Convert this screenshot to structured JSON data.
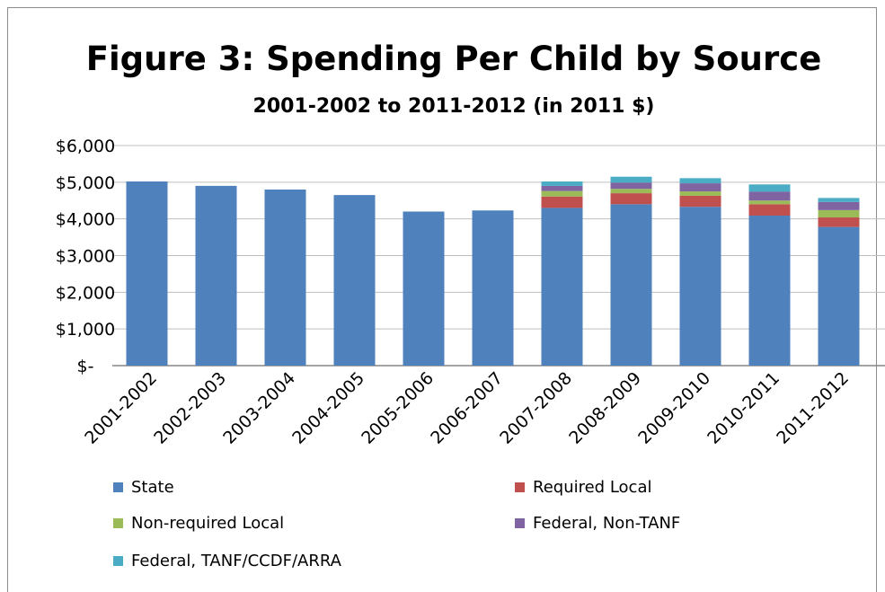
{
  "chart_data": {
    "type": "bar",
    "stacked": true,
    "title": "Figure 3: Spending Per Child by Source",
    "subtitle": "2001-2002 to 2011-2012 (in 2011 $)",
    "xlabel": "",
    "ylabel": "",
    "ylim": [
      0,
      6000
    ],
    "yticks": [
      0,
      1000,
      2000,
      3000,
      4000,
      5000,
      6000
    ],
    "ytick_labels": [
      "$-",
      "$1,000",
      "$2,000",
      "$3,000",
      "$4,000",
      "$5,000",
      "$6,000"
    ],
    "grid": true,
    "legend_position": "bottom",
    "categories": [
      "2001-2002",
      "2002-2003",
      "2003-2004",
      "2004-2005",
      "2005-2006",
      "2006-2007",
      "2007-2008",
      "2008-2009",
      "2009-2010",
      "2010-2011",
      "2011-2012"
    ],
    "series": [
      {
        "name": "State",
        "color": "#4f81bd",
        "values": [
          5020,
          4900,
          4800,
          4650,
          4200,
          4230,
          4300,
          4400,
          4330,
          4090,
          3780
        ]
      },
      {
        "name": "Required Local",
        "color": "#c0504d",
        "values": [
          0,
          0,
          0,
          0,
          0,
          0,
          310,
          300,
          300,
          310,
          260
        ]
      },
      {
        "name": "Non-required Local",
        "color": "#9bbb59",
        "values": [
          0,
          0,
          0,
          0,
          0,
          0,
          150,
          120,
          120,
          100,
          200
        ]
      },
      {
        "name": "Federal, Non-TANF",
        "color": "#8064a2",
        "values": [
          0,
          0,
          0,
          0,
          0,
          0,
          140,
          170,
          220,
          240,
          220
        ]
      },
      {
        "name": "Federal, TANF/CCDF/ARRA",
        "color": "#4bacc6",
        "values": [
          0,
          0,
          0,
          0,
          0,
          0,
          120,
          160,
          140,
          200,
          110
        ]
      }
    ]
  }
}
